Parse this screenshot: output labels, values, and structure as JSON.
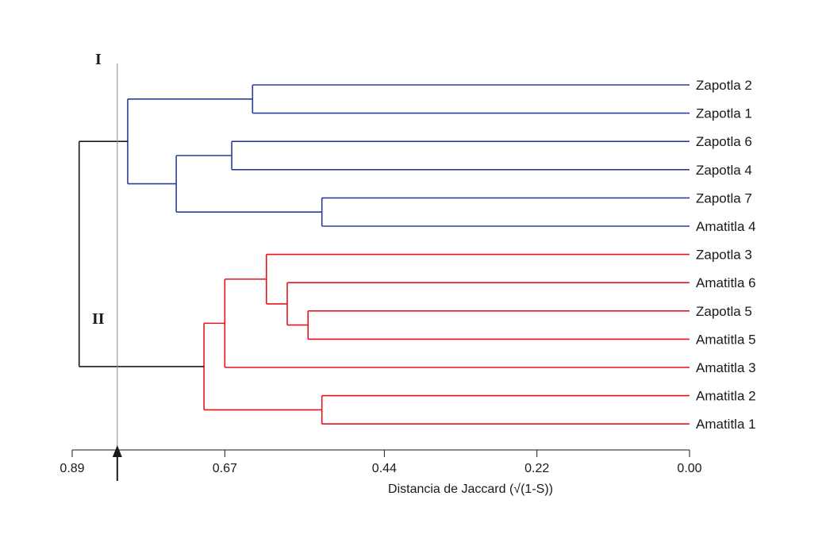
{
  "chart_data": {
    "type": "dendrogram",
    "xlabel": "Distancia de Jaccard (√(1-S))",
    "xlim": [
      0.89,
      0.0
    ],
    "ticks": [
      0.89,
      0.67,
      0.44,
      0.22,
      0.0
    ],
    "tick_labels": [
      "0.89",
      "0.67",
      "0.44",
      "0.22",
      "0.00"
    ],
    "cutoff_distance": 0.825,
    "clusters": [
      {
        "label": "I",
        "color": "#2e3d99"
      },
      {
        "label": "II",
        "color": "#e8141c"
      }
    ],
    "root_color": "#1a1a1a",
    "leaves": [
      "Zapotla 2",
      "Zapotla 1",
      "Zapotla 6",
      "Zapotla 4",
      "Zapotla 7",
      "Amatitla 4",
      "Zapotla 3",
      "Amatitla 6",
      "Zapotla 5",
      "Amatitla 5",
      "Amatitla 3",
      "Amatitla 2",
      "Amatitla 1"
    ],
    "merges": [
      {
        "id": "m1",
        "children": [
          "Zapotla 2",
          "Zapotla 1"
        ],
        "height": 0.63,
        "cluster": 0
      },
      {
        "id": "m2",
        "children": [
          "Zapotla 6",
          "Zapotla 4"
        ],
        "height": 0.66,
        "cluster": 0
      },
      {
        "id": "m3",
        "children": [
          "Zapotla 7",
          "Amatitla 4"
        ],
        "height": 0.53,
        "cluster": 0
      },
      {
        "id": "m4",
        "children": [
          "m2",
          "m3"
        ],
        "height": 0.74,
        "cluster": 0
      },
      {
        "id": "m5",
        "children": [
          "m1",
          "m4"
        ],
        "height": 0.81,
        "cluster": 0
      },
      {
        "id": "m6",
        "children": [
          "Zapotla 5",
          "Amatitla 5"
        ],
        "height": 0.55,
        "cluster": 1
      },
      {
        "id": "m7",
        "children": [
          "Amatitla 6",
          "m6"
        ],
        "height": 0.58,
        "cluster": 1
      },
      {
        "id": "m8",
        "children": [
          "Zapotla 3",
          "m7"
        ],
        "height": 0.61,
        "cluster": 1
      },
      {
        "id": "m9",
        "children": [
          "m8",
          "Amatitla 3"
        ],
        "height": 0.67,
        "cluster": 1
      },
      {
        "id": "m10",
        "children": [
          "Amatitla 2",
          "Amatitla 1"
        ],
        "height": 0.53,
        "cluster": 1
      },
      {
        "id": "m11",
        "children": [
          "m9",
          "m10"
        ],
        "height": 0.7,
        "cluster": 1
      },
      {
        "id": "m12",
        "children": [
          "m5",
          "m11"
        ],
        "height": 0.88,
        "cluster": -1
      }
    ]
  }
}
